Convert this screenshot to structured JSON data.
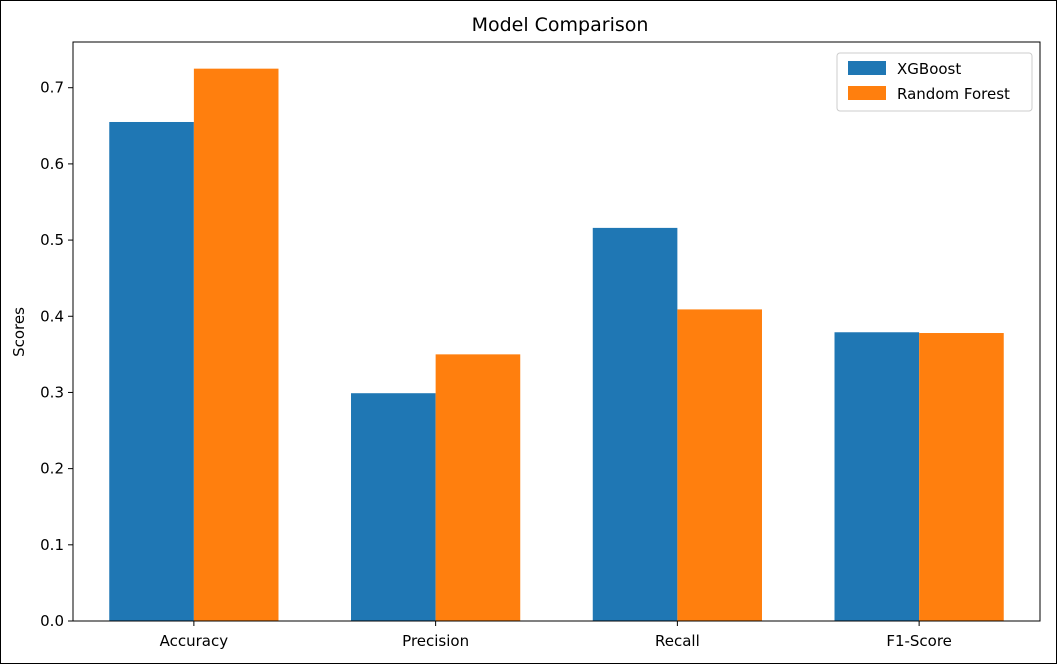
{
  "chart_data": {
    "type": "bar",
    "title": "Model Comparison",
    "xlabel": "",
    "ylabel": "Scores",
    "categories": [
      "Accuracy",
      "Precision",
      "Recall",
      "F1-Score"
    ],
    "series": [
      {
        "name": "XGBoost",
        "color": "#1f77b4",
        "values": [
          0.655,
          0.299,
          0.516,
          0.379
        ]
      },
      {
        "name": "Random Forest",
        "color": "#ff7f0e",
        "values": [
          0.725,
          0.35,
          0.409,
          0.378
        ]
      }
    ],
    "ylim": [
      0,
      0.76
    ],
    "yticks": [
      "0.0",
      "0.1",
      "0.2",
      "0.3",
      "0.4",
      "0.5",
      "0.6",
      "0.7"
    ],
    "grid": false,
    "legend_position": "top-right"
  }
}
